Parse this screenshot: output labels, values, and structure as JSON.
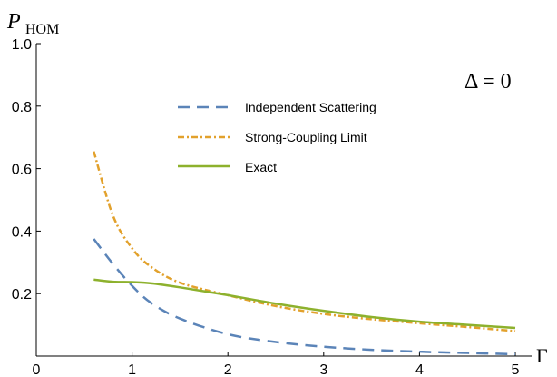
{
  "chart_data": {
    "type": "line",
    "ylabel_main": "P",
    "ylabel_sub": "HOM",
    "xlabel": "Γ",
    "annotation": "Δ = 0",
    "xlim": [
      0,
      5
    ],
    "ylim": [
      0,
      1.0
    ],
    "xticks": [
      0,
      1,
      2,
      3,
      4,
      5
    ],
    "yticks": [
      0.2,
      0.4,
      0.6,
      0.8,
      1.0
    ],
    "ytick_labels": [
      "0.2",
      "0.4",
      "0.6",
      "0.8",
      "1.0"
    ],
    "grid": false,
    "legend_position": "top-center",
    "series": [
      {
        "name": "Independent Scattering",
        "color": "#5b84b8",
        "style": "dashed",
        "x": [
          0.6,
          0.8,
          1.0,
          1.2,
          1.5,
          2.0,
          2.5,
          3.0,
          3.5,
          4.0,
          4.5,
          5.0
        ],
        "y": [
          0.375,
          0.295,
          0.225,
          0.17,
          0.12,
          0.07,
          0.045,
          0.03,
          0.02,
          0.014,
          0.01,
          0.006
        ]
      },
      {
        "name": "Strong-Coupling Limit",
        "color": "#e2a12c",
        "style": "dashdot",
        "x": [
          0.6,
          0.8,
          1.0,
          1.2,
          1.5,
          2.0,
          2.5,
          3.0,
          3.5,
          4.0,
          4.5,
          5.0
        ],
        "y": [
          0.655,
          0.45,
          0.345,
          0.285,
          0.235,
          0.195,
          0.16,
          0.135,
          0.118,
          0.105,
          0.093,
          0.08
        ]
      },
      {
        "name": "Exact",
        "color": "#8db12d",
        "style": "solid",
        "x": [
          0.6,
          0.8,
          1.0,
          1.2,
          1.5,
          2.0,
          2.5,
          3.0,
          3.5,
          4.0,
          4.5,
          5.0
        ],
        "y": [
          0.245,
          0.238,
          0.237,
          0.233,
          0.22,
          0.195,
          0.168,
          0.145,
          0.125,
          0.11,
          0.1,
          0.09
        ]
      }
    ]
  }
}
